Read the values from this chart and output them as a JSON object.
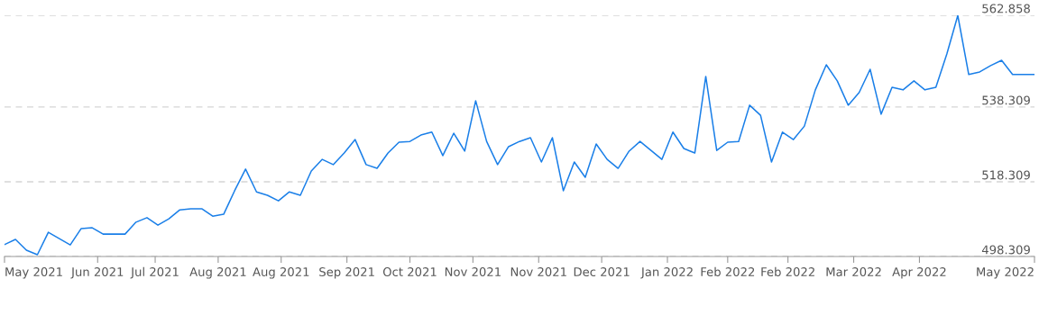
{
  "chart_data": {
    "type": "line",
    "x": [
      "2021-05-17",
      "2021-05-21",
      "2021-05-25",
      "2021-05-29",
      "2021-06-02",
      "2021-06-06",
      "2021-06-10",
      "2021-06-14",
      "2021-06-18",
      "2021-06-22",
      "2021-06-26",
      "2021-06-30",
      "2021-07-04",
      "2021-07-08",
      "2021-07-12",
      "2021-07-16",
      "2021-07-20",
      "2021-07-24",
      "2021-07-28",
      "2021-08-01",
      "2021-08-05",
      "2021-08-09",
      "2021-08-13",
      "2021-08-17",
      "2021-08-21",
      "2021-08-25",
      "2021-08-29",
      "2021-09-02",
      "2021-09-06",
      "2021-09-10",
      "2021-09-14",
      "2021-09-18",
      "2021-09-22",
      "2021-09-26",
      "2021-09-30",
      "2021-10-04",
      "2021-10-08",
      "2021-10-12",
      "2021-10-16",
      "2021-10-20",
      "2021-10-24",
      "2021-10-28",
      "2021-11-01",
      "2021-11-05",
      "2021-11-09",
      "2021-11-13",
      "2021-11-17",
      "2021-11-21",
      "2021-11-25",
      "2021-11-29",
      "2021-12-03",
      "2021-12-07",
      "2021-12-11",
      "2021-12-15",
      "2021-12-19",
      "2021-12-23",
      "2021-12-27",
      "2021-12-31",
      "2022-01-04",
      "2022-01-08",
      "2022-01-12",
      "2022-01-16",
      "2022-01-20",
      "2022-01-24",
      "2022-01-28",
      "2022-02-01",
      "2022-02-05",
      "2022-02-09",
      "2022-02-13",
      "2022-02-17",
      "2022-02-21",
      "2022-02-25",
      "2022-03-01",
      "2022-03-05",
      "2022-03-09",
      "2022-03-13",
      "2022-03-17",
      "2022-03-21",
      "2022-03-25",
      "2022-03-29",
      "2022-04-02",
      "2022-04-06",
      "2022-04-10",
      "2022-04-14",
      "2022-04-18",
      "2022-04-22",
      "2022-04-26",
      "2022-04-30",
      "2022-05-04",
      "2022-05-08",
      "2022-05-12",
      "2022-05-16",
      "2022-05-20",
      "2022-05-24",
      "2022-05-28"
    ],
    "series": [
      {
        "color": "#1a7fe8",
        "values": [
          501.5,
          502.9,
          500.0,
          498.8,
          504.8,
          503.1,
          501.4,
          505.8,
          506.0,
          504.3,
          504.3,
          504.3,
          507.5,
          508.7,
          506.7,
          508.4,
          510.8,
          511.1,
          511.1,
          509.1,
          509.6,
          515.9,
          521.7,
          515.6,
          514.7,
          513.2,
          515.6,
          514.7,
          521.2,
          524.3,
          522.9,
          526.0,
          529.6,
          522.9,
          521.9,
          526.0,
          528.9,
          529.1,
          530.8,
          531.6,
          525.3,
          531.3,
          526.5,
          540.0,
          529.1,
          522.9,
          527.7,
          529.1,
          530.1,
          523.6,
          530.1,
          515.9,
          523.6,
          519.5,
          528.4,
          524.3,
          521.9,
          526.5,
          529.1,
          526.7,
          524.3,
          531.6,
          527.2,
          526.0,
          546.5,
          526.7,
          528.9,
          529.1,
          538.8,
          536.1,
          523.6,
          531.6,
          529.6,
          533.2,
          542.9,
          549.6,
          545.3,
          538.8,
          542.2,
          548.4,
          536.4,
          543.6,
          542.9,
          545.3,
          542.9,
          543.6,
          552.5,
          562.8,
          547.0,
          547.7,
          549.4,
          550.8,
          547.0,
          547.0,
          547.0
        ]
      }
    ],
    "xlim": [
      "2021-05-17",
      "2022-05-28"
    ],
    "xticks": [
      {
        "value": "2021-05-17",
        "label": "May 2021"
      },
      {
        "value": "2021-06-20",
        "label": "Jun 2021"
      },
      {
        "value": "2021-07-11",
        "label": "Jul 2021"
      },
      {
        "value": "2021-08-03",
        "label": "Aug 2021"
      },
      {
        "value": "2021-08-26",
        "label": "Aug 2021"
      },
      {
        "value": "2021-09-19",
        "label": "Sep 2021"
      },
      {
        "value": "2021-10-12",
        "label": "Oct 2021"
      },
      {
        "value": "2021-11-04",
        "label": "Nov 2021"
      },
      {
        "value": "2021-11-28",
        "label": "Nov 2021"
      },
      {
        "value": "2021-12-21",
        "label": "Dec 2021"
      },
      {
        "value": "2022-01-14",
        "label": "Jan 2022"
      },
      {
        "value": "2022-02-05",
        "label": "Feb 2022"
      },
      {
        "value": "2022-02-27",
        "label": "Feb 2022"
      },
      {
        "value": "2022-03-23",
        "label": "Mar 2022"
      },
      {
        "value": "2022-04-16",
        "label": "Apr 2022"
      },
      {
        "value": "2022-05-28",
        "label": "May 2022"
      }
    ],
    "ylim": [
      498.309,
      562.858
    ],
    "yticks": [
      498.309,
      518.309,
      538.309,
      562.858
    ],
    "grid": "y",
    "marker": "none",
    "line_style": "solid"
  }
}
